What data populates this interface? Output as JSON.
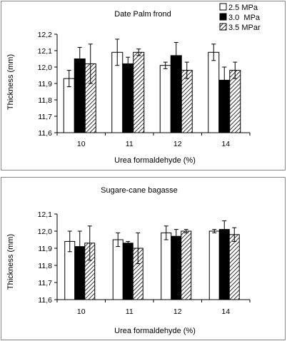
{
  "chart_data": [
    {
      "type": "bar",
      "title": "Date Palm frond",
      "xlabel": "Urea formaldehyde (%)",
      "ylabel": "Thickness (mm)",
      "ylim": [
        11.6,
        12.2
      ],
      "yticks": [
        11.6,
        11.7,
        11.8,
        11.9,
        12.0,
        12.1,
        12.2
      ],
      "ytick_labels": [
        "11,6",
        "11,7",
        "11,8",
        "11,9",
        "12,0",
        "12,1",
        "12,2"
      ],
      "categories": [
        "10",
        "11",
        "12",
        "14"
      ],
      "legend_position": "top-right",
      "grid": false,
      "series": [
        {
          "name": "2.5 MPa",
          "fill": "white",
          "values": [
            11.93,
            12.09,
            12.01,
            12.09
          ],
          "errors": [
            0.05,
            0.08,
            0.02,
            0.05
          ]
        },
        {
          "name": "3.0  MPa",
          "fill": "black",
          "values": [
            12.05,
            12.02,
            12.07,
            11.92
          ],
          "errors": [
            0.07,
            0.04,
            0.08,
            0.08
          ]
        },
        {
          "name": "3.5 MPar",
          "fill": "hatch",
          "values": [
            12.02,
            12.09,
            11.98,
            11.98
          ],
          "errors": [
            0.12,
            0.02,
            0.05,
            0.05
          ]
        }
      ]
    },
    {
      "type": "bar",
      "title": "Sugare-cane bagasse",
      "xlabel": "Urea formaldehyde (%)",
      "ylabel": "Thickness (mm)",
      "ylim": [
        11.6,
        12.1
      ],
      "yticks": [
        11.6,
        11.7,
        11.8,
        11.9,
        12.0,
        12.1
      ],
      "ytick_labels": [
        "11,6",
        "11,7",
        "11,8",
        "11,9",
        "12,0",
        "12,1"
      ],
      "categories": [
        "10",
        "11",
        "12",
        "14"
      ],
      "grid": false,
      "series": [
        {
          "name": "2.5 MPa",
          "fill": "white",
          "values": [
            11.94,
            11.95,
            11.99,
            12.0
          ],
          "errors": [
            0.06,
            0.04,
            0.04,
            0.01
          ]
        },
        {
          "name": "3.0  MPa",
          "fill": "black",
          "values": [
            11.91,
            11.93,
            11.97,
            12.01
          ],
          "errors": [
            0.09,
            0.01,
            0.04,
            0.05
          ]
        },
        {
          "name": "3.5 MPar",
          "fill": "hatch",
          "values": [
            11.93,
            11.9,
            12.0,
            11.98
          ],
          "errors": [
            0.1,
            0.09,
            0.01,
            0.04
          ]
        }
      ]
    }
  ]
}
